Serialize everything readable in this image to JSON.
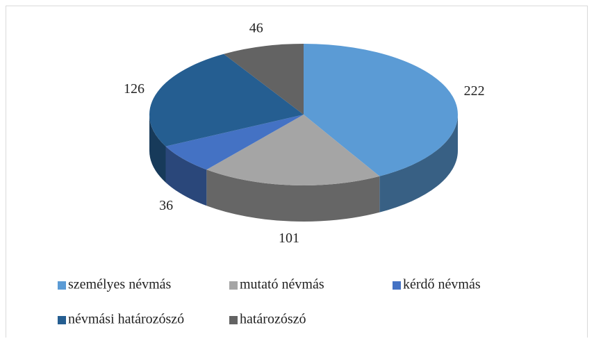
{
  "chart_data": {
    "type": "pie3d",
    "categories": [
      "személyes névmás",
      "mutató névmás",
      "kérdő névmás",
      "névmási határozószó",
      "határozószó"
    ],
    "values": [
      222,
      101,
      36,
      126,
      46
    ],
    "colors": [
      "#5b9bd5",
      "#a5a5a5",
      "#4472c4",
      "#255e91",
      "#636363"
    ],
    "legend": "bottom"
  }
}
